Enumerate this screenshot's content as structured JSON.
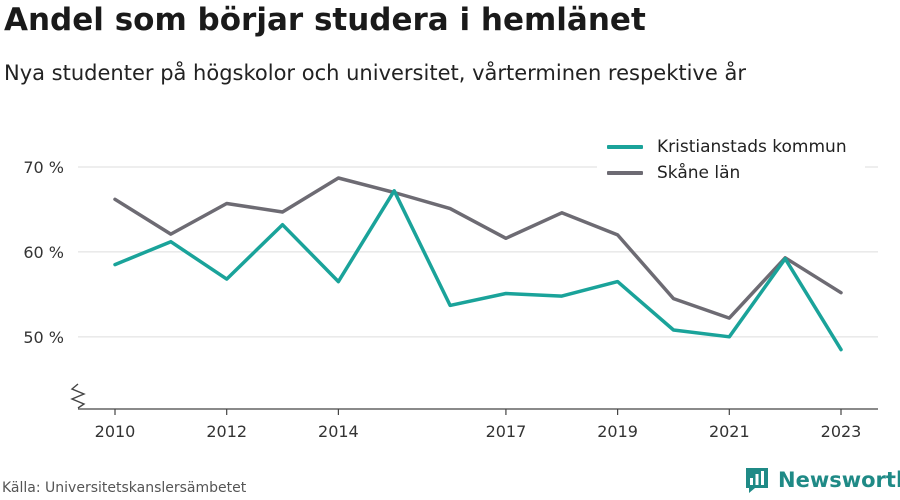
{
  "title": "Andel som börjar studera i hemlänet",
  "subtitle": "Nya studenter på högskolor och universitet, vårterminen respektive år",
  "source": "Källa: Universitetskanslersämbetet",
  "brand": "Newsworthy",
  "legend": [
    {
      "label": "Kristianstads kommun",
      "color": "#1aa39a"
    },
    {
      "label": "Skåne län",
      "color": "#6d6b73"
    }
  ],
  "chart_data": {
    "type": "line",
    "x": [
      2010,
      2011,
      2012,
      2013,
      2014,
      2015,
      2016,
      2017,
      2018,
      2019,
      2020,
      2021,
      2022,
      2023
    ],
    "x_tick_labels": [
      "2010",
      "2012",
      "2014",
      "2017",
      "2019",
      "2021",
      "2023"
    ],
    "y_tick_labels": [
      "50 %",
      "60 %",
      "70 %"
    ],
    "y_ticks": [
      50,
      60,
      70
    ],
    "ylim": [
      41.5,
      72
    ],
    "y_axis_break": true,
    "grid": true,
    "legend_position": "top-right",
    "series": [
      {
        "name": "Kristianstads kommun",
        "color": "#1aa39a",
        "values": [
          58.5,
          61.2,
          56.8,
          63.2,
          56.5,
          67.2,
          53.7,
          55.1,
          54.8,
          56.5,
          50.8,
          50.0,
          59.2,
          48.5
        ]
      },
      {
        "name": "Skåne län",
        "color": "#6d6b73",
        "values": [
          66.2,
          62.1,
          65.7,
          64.7,
          68.7,
          67.0,
          65.1,
          61.6,
          64.6,
          62.0,
          54.5,
          52.2,
          59.3,
          55.2
        ]
      }
    ]
  }
}
